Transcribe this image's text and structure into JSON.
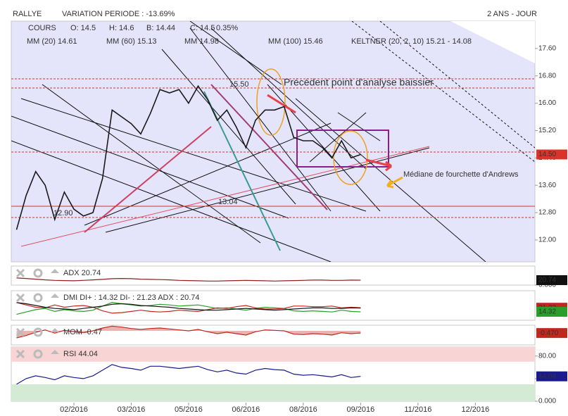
{
  "header": {
    "symbol": "RALLYE",
    "variation": "VARIATION PERIODE : -13.69%",
    "period": "2 ANS - JOUR"
  },
  "chart_data": [
    {
      "type": "line",
      "legend": [
        {
          "text": "O: 14.5",
          "color": "#333333"
        },
        {
          "text": "H: 14.6",
          "color": "#333333"
        },
        {
          "text": "B: 14.44",
          "color": "#333333"
        },
        {
          "text": "C: 14.5",
          "color": "#333333"
        },
        {
          "text": "0.35%",
          "color": "#2a9d2a"
        },
        {
          "text": "MM (20) 14.61",
          "color": "#d9342b"
        },
        {
          "text": "MM (60) 15.13",
          "color": "#f0a030"
        },
        {
          "text": "MM 14.98",
          "color": "#2e8b7a"
        },
        {
          "text": "MM (100) 15.46",
          "color": "#40b8d8"
        },
        {
          "text": "KELTNER (20, 2, 10) 15.21 - 14.08",
          "color": "#2a9d2a"
        }
      ],
      "categories": [
        null,
        null,
        null,
        null,
        null,
        null,
        "02/2016",
        null,
        null,
        null,
        null,
        null,
        "03/2016",
        null,
        null,
        null,
        null,
        null,
        "05/2016",
        null,
        null,
        null,
        null,
        null,
        "06/2016",
        null,
        null,
        null,
        null,
        null,
        "08/2016",
        null,
        null,
        null,
        null,
        null,
        "09/2016",
        null,
        null,
        null,
        null,
        null,
        "11/2016",
        null,
        null,
        null,
        null,
        null,
        "12/2016",
        null,
        null,
        null,
        null,
        null,
        null
      ],
      "series": [
        {
          "name": "COURS",
          "color": "#1a1a1a",
          "values": [
            12.3,
            13.3,
            14.0,
            13.6,
            12.6,
            13.4,
            12.9,
            12.7,
            12.8,
            13.8,
            15.8,
            15.6,
            15.4,
            15.1,
            15.7,
            16.4,
            16.3,
            16.4,
            16.0,
            16.5,
            16.1,
            15.5,
            15.8,
            15.3,
            14.7,
            15.5,
            15.8,
            15.8,
            15.9,
            15.0,
            14.9,
            14.9,
            14.7,
            14.4,
            14.9,
            14.4,
            14.5,
            null,
            null,
            null,
            null,
            null,
            null,
            null,
            null,
            null,
            null,
            null,
            null,
            null,
            null,
            null,
            null,
            null,
            null
          ]
        }
      ],
      "ylim": [
        11.36,
        18.4
      ],
      "yticks": [
        {
          "value": 17.6,
          "label": "17.60"
        },
        {
          "value": 16.8,
          "label": "16.80"
        },
        {
          "value": 16,
          "label": "16.00"
        },
        {
          "value": 15.2,
          "label": "15.20"
        },
        {
          "value": 14.4,
          "label": "14.40"
        },
        {
          "value": 13.6,
          "label": "13.60"
        },
        {
          "value": 12.8,
          "label": "12.80"
        },
        {
          "value": 12,
          "label": "12.00"
        }
      ],
      "tags": [
        {
          "value": 14.5,
          "label": "14.50",
          "color": "#d9342b"
        }
      ],
      "annotations": [
        {
          "text": "Précédent point d'analyse baissier",
          "color": "#111111"
        },
        {
          "text": "Médiane de fourchette d'Andrews",
          "color": "#111111"
        },
        {
          "text": "15.50",
          "color": "#d9342b"
        },
        {
          "text": "13.04",
          "color": "#d9342b"
        },
        {
          "text": "12.90",
          "color": "#d9342b"
        }
      ]
    },
    {
      "type": "line",
      "title": "ADX 20.74",
      "ylim": [
        0,
        80
      ],
      "yticks": [
        {
          "value": 0,
          "label": "0.000"
        }
      ],
      "tags": [
        {
          "value": 20.74,
          "label": "20.74",
          "color": "#111111"
        }
      ],
      "series": [
        {
          "name": "ADX",
          "color": "#8b2020",
          "values": [
            30,
            28,
            25,
            22,
            20,
            19,
            18,
            20,
            22,
            24,
            27,
            28,
            27,
            25,
            24,
            23,
            22,
            20,
            19,
            18,
            17,
            17,
            18,
            19,
            20,
            19,
            18,
            17,
            18,
            19,
            20,
            21,
            21,
            20,
            20,
            21,
            20.74
          ]
        }
      ]
    },
    {
      "type": "line",
      "title": "DMI DI+ : 14.32 DI- : 21.23 ADX : 20.74",
      "ylim": [
        0,
        50
      ],
      "yticks": [],
      "tags": [
        {
          "value": 21.23,
          "label": "21.23",
          "color": "#c0281e"
        },
        {
          "value": 14.32,
          "label": "14.32",
          "color": "#2a9d2a"
        }
      ],
      "series": [
        {
          "name": "DI+",
          "color": "#2a9d2a",
          "values": [
            10,
            14,
            18,
            20,
            15,
            18,
            16,
            15,
            17,
            24,
            30,
            28,
            26,
            24,
            25,
            27,
            26,
            24,
            25,
            26,
            23,
            20,
            21,
            19,
            17,
            20,
            22,
            21,
            20,
            16,
            15,
            16,
            15,
            14,
            17,
            15,
            14.32
          ]
        },
        {
          "name": "DI-",
          "color": "#c0281e",
          "values": [
            30,
            26,
            22,
            21,
            26,
            22,
            24,
            25,
            22,
            16,
            12,
            13,
            15,
            17,
            15,
            14,
            15,
            17,
            16,
            15,
            18,
            21,
            20,
            23,
            25,
            21,
            19,
            19,
            20,
            24,
            24,
            23,
            23,
            24,
            21,
            22,
            21.23
          ]
        },
        {
          "name": "ADX",
          "color": "#111111",
          "values": [
            30,
            28,
            25,
            22,
            20,
            19,
            18,
            20,
            22,
            24,
            27,
            28,
            27,
            25,
            24,
            23,
            22,
            20,
            19,
            18,
            17,
            17,
            18,
            19,
            20,
            19,
            18,
            17,
            18,
            19,
            20,
            21,
            21,
            20,
            20,
            21,
            20.74
          ]
        }
      ]
    },
    {
      "type": "area",
      "title": "MOM -0.47",
      "ylim": [
        -3,
        1.2
      ],
      "yticks": [],
      "tags": [
        {
          "value": -0.47,
          "label": "-0.470",
          "color": "#c0281e"
        }
      ],
      "series": [
        {
          "name": "MOM",
          "color": "#c0281e",
          "values": [
            -1.5,
            -1,
            -0.3,
            0.2,
            -0.5,
            0.1,
            -0.2,
            -0.4,
            0,
            0.6,
            1.0,
            0.8,
            0.5,
            0.3,
            0.5,
            0.6,
            0.4,
            0.2,
            0,
            0.3,
            -0.2,
            -0.6,
            -0.3,
            -0.6,
            -0.9,
            -0.2,
            0.2,
            0.1,
            0,
            -0.7,
            -0.8,
            -0.6,
            -0.7,
            -0.9,
            -0.4,
            -0.6,
            -0.47
          ]
        }
      ]
    },
    {
      "type": "line",
      "title": "RSI 44.04",
      "ylim": [
        0,
        96
      ],
      "yticks": [
        {
          "value": 80,
          "label": "80.00"
        },
        {
          "value": 40,
          "label": "40.00"
        },
        {
          "value": 0,
          "label": "0.000"
        }
      ],
      "bands": [
        {
          "from": 70,
          "to": 96,
          "color": "#f8d4d4"
        },
        {
          "from": 0,
          "to": 30,
          "color": "#d4ead4"
        }
      ],
      "tags": [
        {
          "value": 44.04,
          "label": "44.04",
          "color": "#1a1a8c"
        }
      ],
      "series": [
        {
          "name": "RSI",
          "color": "#1a1a8c",
          "values": [
            30,
            40,
            45,
            42,
            38,
            45,
            42,
            40,
            45,
            55,
            65,
            60,
            58,
            55,
            62,
            62,
            60,
            58,
            60,
            62,
            56,
            52,
            55,
            50,
            48,
            55,
            58,
            56,
            55,
            48,
            46,
            47,
            45,
            43,
            47,
            42,
            44.04
          ]
        }
      ]
    }
  ]
}
